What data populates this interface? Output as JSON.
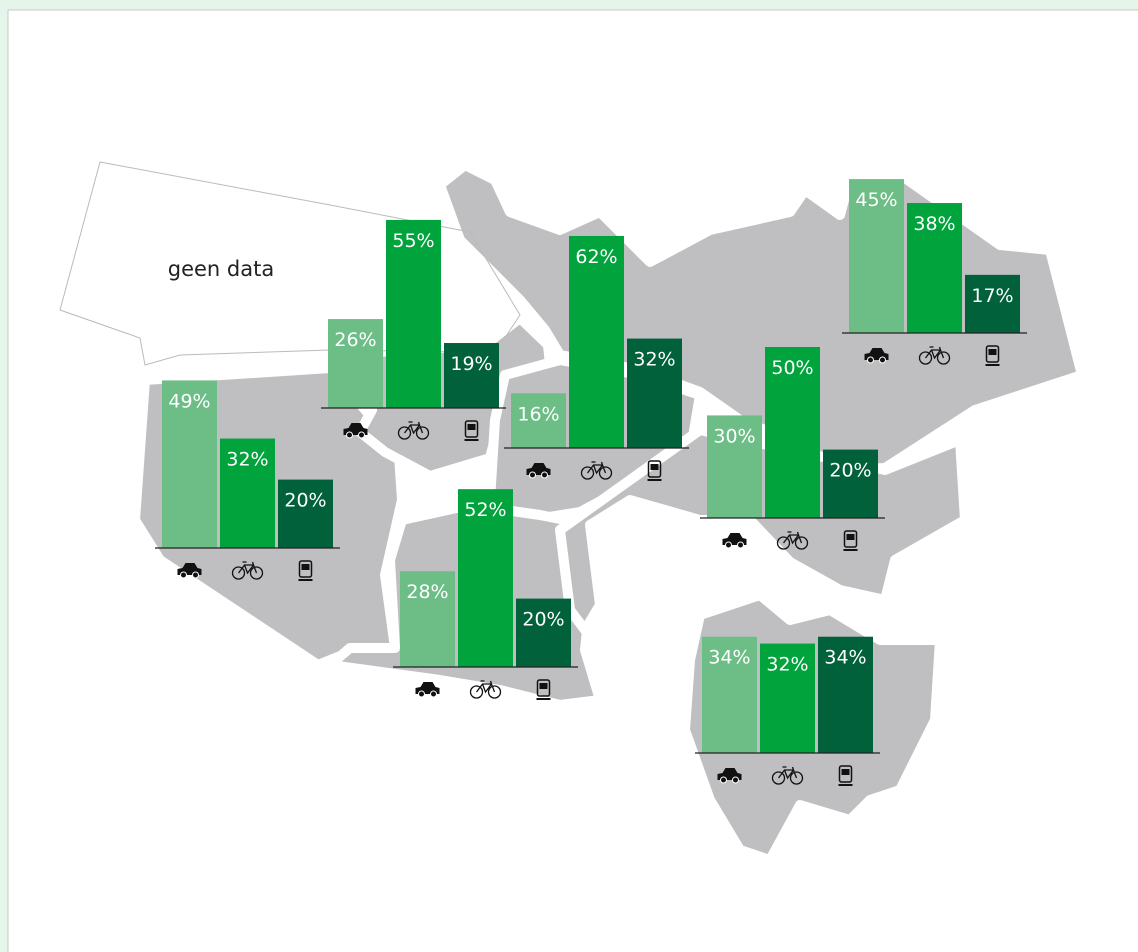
{
  "map": {
    "no_data_label": "geen data"
  },
  "chart_data": [
    {
      "type": "bar",
      "values": [
        49,
        32,
        20
      ],
      "value_labels": [
        "49%",
        "32%",
        "20%"
      ],
      "colors": [
        "#6dbd87",
        "#00a33c",
        "#00613a"
      ]
    },
    {
      "type": "bar",
      "values": [
        26,
        55,
        19
      ],
      "value_labels": [
        "26%",
        "55%",
        "19%"
      ],
      "colors": [
        "#6dbd87",
        "#00a33c",
        "#00613a"
      ]
    },
    {
      "type": "bar",
      "values": [
        16,
        62,
        32
      ],
      "value_labels": [
        "16%",
        "62%",
        "32%"
      ],
      "colors": [
        "#6dbd87",
        "#00a33c",
        "#00613a"
      ]
    },
    {
      "type": "bar",
      "values": [
        45,
        38,
        17
      ],
      "value_labels": [
        "45%",
        "38%",
        "17%"
      ],
      "colors": [
        "#6dbd87",
        "#00a33c",
        "#00613a"
      ]
    },
    {
      "type": "bar",
      "values": [
        30,
        50,
        20
      ],
      "value_labels": [
        "30%",
        "50%",
        "20%"
      ],
      "colors": [
        "#6dbd87",
        "#00a33c",
        "#00613a"
      ]
    },
    {
      "type": "bar",
      "values": [
        28,
        52,
        20
      ],
      "value_labels": [
        "28%",
        "52%",
        "20%"
      ],
      "colors": [
        "#6dbd87",
        "#00a33c",
        "#00613a"
      ]
    },
    {
      "type": "bar",
      "values": [
        34,
        32,
        34
      ],
      "value_labels": [
        "34%",
        "32%",
        "34%"
      ],
      "colors": [
        "#6dbd87",
        "#00a33c",
        "#00613a"
      ]
    }
  ]
}
